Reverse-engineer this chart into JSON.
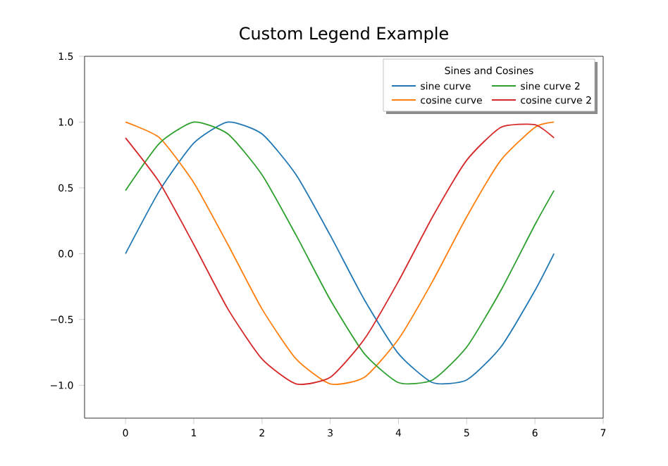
{
  "chart_data": {
    "type": "line",
    "title": "Custom Legend Example",
    "legend_title": "Sines and Cosines",
    "x": [
      0,
      0.5,
      1,
      1.5,
      2,
      2.5,
      3,
      3.5,
      4,
      4.5,
      5,
      5.5,
      6,
      6.28
    ],
    "series": [
      {
        "name": "sine curve",
        "color": "#1f77b4",
        "values": [
          0,
          0.48,
          0.84,
          1.0,
          0.91,
          0.6,
          0.14,
          -0.35,
          -0.76,
          -0.98,
          -0.96,
          -0.71,
          -0.28,
          0.0
        ]
      },
      {
        "name": "cosine curve",
        "color": "#ff7f0e",
        "values": [
          1.0,
          0.88,
          0.54,
          0.07,
          -0.42,
          -0.8,
          -0.99,
          -0.94,
          -0.65,
          -0.21,
          0.28,
          0.71,
          0.96,
          1.0
        ]
      },
      {
        "name": "sine curve 2",
        "color": "#2ca02c",
        "values": [
          0.48,
          0.84,
          1.0,
          0.91,
          0.6,
          0.14,
          -0.35,
          -0.76,
          -0.98,
          -0.96,
          -0.71,
          -0.28,
          0.22,
          0.48
        ]
      },
      {
        "name": "cosine curve 2",
        "color": "#d62728",
        "values": [
          0.88,
          0.54,
          0.07,
          -0.42,
          -0.8,
          -0.99,
          -0.94,
          -0.65,
          -0.21,
          0.28,
          0.71,
          0.96,
          0.98,
          0.88
        ]
      }
    ],
    "xlim": [
      -0.6,
      7
    ],
    "ylim": [
      -1.25,
      1.5
    ],
    "xticks": [
      0,
      1,
      2,
      3,
      4,
      5,
      6,
      7
    ],
    "yticks": [
      {
        "value": -1.0,
        "label": "−1.0"
      },
      {
        "value": -0.5,
        "label": "−0.5"
      },
      {
        "value": 0.0,
        "label": "0.0"
      },
      {
        "value": 0.5,
        "label": "0.5"
      },
      {
        "value": 1.0,
        "label": "1.0"
      },
      {
        "value": 1.5,
        "label": "1.5"
      }
    ],
    "legend": "top right",
    "grid": false,
    "marker": "none",
    "line_style": "solid"
  }
}
